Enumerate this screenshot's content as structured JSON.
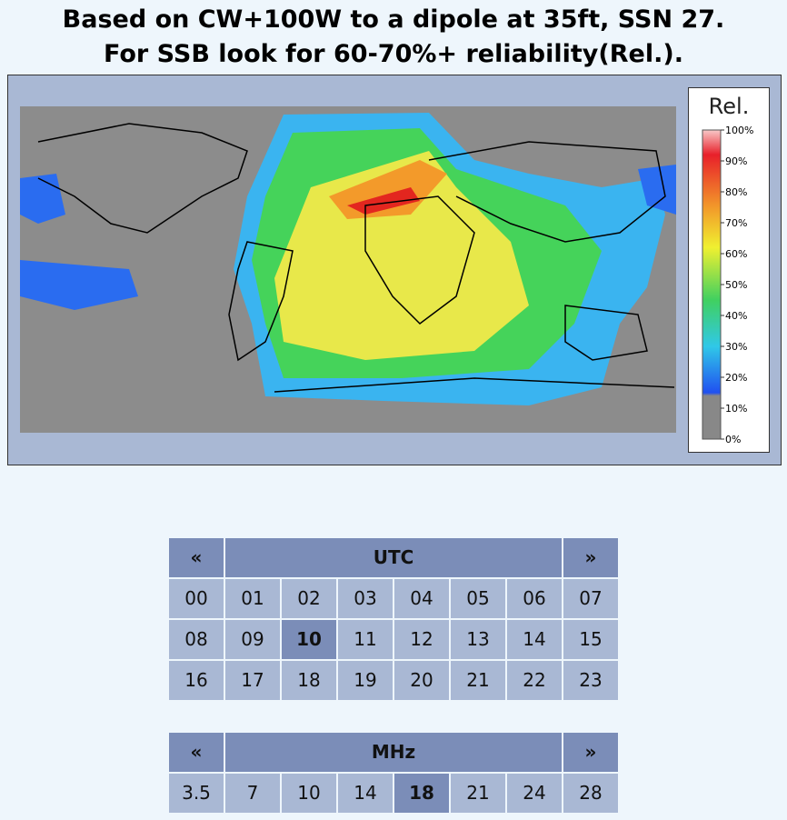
{
  "header": {
    "lines": [
      "Based on CW+100W to a dipole at 35ft, SSN 27.",
      "For SSB look for 60-70%+ reliability(Rel.)."
    ]
  },
  "legend": {
    "title": "Rel.",
    "labels": [
      "100%",
      "90%",
      "80%",
      "70%",
      "60%",
      "50%",
      "40%",
      "30%",
      "20%",
      "10%",
      "0%"
    ]
  },
  "utc": {
    "prev": "«",
    "title": "UTC",
    "next": "»",
    "rows": [
      [
        "00",
        "01",
        "02",
        "03",
        "04",
        "05",
        "06",
        "07"
      ],
      [
        "08",
        "09",
        "10",
        "11",
        "12",
        "13",
        "14",
        "15"
      ],
      [
        "16",
        "17",
        "18",
        "19",
        "20",
        "21",
        "22",
        "23"
      ]
    ],
    "selected": [
      1,
      2
    ]
  },
  "mhz": {
    "prev": "«",
    "title": "MHz",
    "next": "»",
    "rows": [
      [
        "3.5",
        "7",
        "10",
        "14",
        "18",
        "21",
        "24",
        "28"
      ]
    ],
    "selected": [
      0,
      4
    ]
  }
}
